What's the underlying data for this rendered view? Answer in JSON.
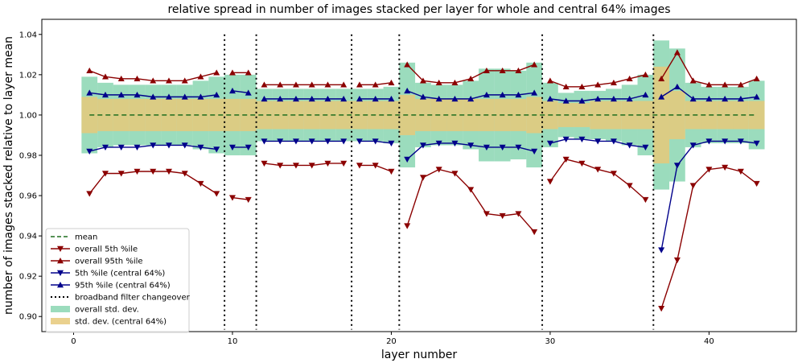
{
  "chart_data": {
    "type": "line",
    "title": "relative spread in number of images stacked per layer for whole and central 64% images",
    "xlabel": "layer number",
    "ylabel": "number of images stacked relative to layer mean",
    "xlim": [
      -2,
      45.5
    ],
    "ylim": [
      0.8925,
      1.0475
    ],
    "xticks": [
      0,
      10,
      20,
      30,
      40
    ],
    "yticks": [
      0.9,
      0.92,
      0.94,
      0.96,
      0.98,
      1.0,
      1.02,
      1.04
    ],
    "ytick_labels": [
      "0.90",
      "0.92",
      "0.94",
      "0.96",
      "0.98",
      "1.00",
      "1.02",
      "1.04"
    ],
    "legend_position": "lower-left",
    "mean_value": 1.0,
    "filter_changeovers": [
      9.5,
      11.5,
      17.5,
      20.5,
      29.5,
      36.5
    ],
    "layers": [
      1,
      2,
      3,
      4,
      5,
      6,
      7,
      8,
      9,
      10,
      11,
      12,
      13,
      14,
      15,
      16,
      17,
      18,
      19,
      20,
      21,
      22,
      23,
      24,
      25,
      26,
      27,
      28,
      29,
      30,
      31,
      32,
      33,
      34,
      35,
      36,
      37,
      38,
      39,
      40,
      41,
      42,
      43
    ],
    "series": [
      {
        "name": "mean",
        "kind": "dashed",
        "color": "#1f6e1f"
      },
      {
        "name": "overall 5th %ile",
        "kind": "line",
        "marker": "tri-down",
        "color": "#8b0000",
        "values": [
          0.961,
          0.971,
          0.971,
          0.972,
          0.972,
          0.972,
          0.971,
          0.966,
          0.961,
          0.959,
          0.958,
          0.976,
          0.975,
          0.975,
          0.975,
          0.976,
          0.976,
          0.975,
          0.975,
          0.972,
          0.945,
          0.969,
          0.973,
          0.971,
          0.963,
          0.951,
          0.95,
          0.951,
          0.942,
          0.967,
          0.978,
          0.976,
          0.973,
          0.971,
          0.965,
          0.958,
          0.904,
          0.928,
          0.965,
          0.973,
          0.974,
          0.972,
          0.966
        ]
      },
      {
        "name": "overall 95th %ile",
        "kind": "line",
        "marker": "tri-up",
        "color": "#8b0000",
        "values": [
          1.022,
          1.019,
          1.018,
          1.018,
          1.017,
          1.017,
          1.017,
          1.019,
          1.021,
          1.021,
          1.021,
          1.015,
          1.015,
          1.015,
          1.015,
          1.015,
          1.015,
          1.015,
          1.015,
          1.016,
          1.025,
          1.017,
          1.016,
          1.016,
          1.018,
          1.022,
          1.022,
          1.022,
          1.025,
          1.017,
          1.014,
          1.014,
          1.015,
          1.016,
          1.018,
          1.02,
          1.018,
          1.031,
          1.017,
          1.015,
          1.015,
          1.015,
          1.018
        ]
      },
      {
        "name": "5th %ile (central 64%)",
        "kind": "line",
        "marker": "tri-down",
        "color": "#00008b",
        "values": [
          0.982,
          0.984,
          0.984,
          0.984,
          0.985,
          0.985,
          0.985,
          0.984,
          0.983,
          0.984,
          0.984,
          0.987,
          0.987,
          0.987,
          0.987,
          0.987,
          0.987,
          0.987,
          0.987,
          0.986,
          0.978,
          0.985,
          0.986,
          0.986,
          0.985,
          0.984,
          0.984,
          0.984,
          0.982,
          0.986,
          0.988,
          0.988,
          0.987,
          0.987,
          0.985,
          0.984,
          0.933,
          0.975,
          0.985,
          0.987,
          0.987,
          0.987,
          0.986
        ]
      },
      {
        "name": "95th %ile (central 64%)",
        "kind": "line",
        "marker": "tri-up",
        "color": "#00008b",
        "values": [
          1.011,
          1.01,
          1.01,
          1.01,
          1.009,
          1.009,
          1.009,
          1.009,
          1.01,
          1.012,
          1.011,
          1.008,
          1.008,
          1.008,
          1.008,
          1.008,
          1.008,
          1.008,
          1.008,
          1.008,
          1.012,
          1.009,
          1.008,
          1.008,
          1.008,
          1.01,
          1.01,
          1.01,
          1.011,
          1.008,
          1.007,
          1.007,
          1.008,
          1.008,
          1.008,
          1.01,
          1.009,
          1.014,
          1.008,
          1.008,
          1.008,
          1.008,
          1.009
        ]
      },
      {
        "name": "broadband filter changeover",
        "kind": "dotted-vline",
        "color": "#000000"
      },
      {
        "name": "overall std. dev.",
        "kind": "band",
        "color": "#66c999",
        "values": [
          0.019,
          0.016,
          0.015,
          0.015,
          0.015,
          0.015,
          0.015,
          0.017,
          0.019,
          0.02,
          0.02,
          0.013,
          0.013,
          0.013,
          0.013,
          0.013,
          0.013,
          0.013,
          0.013,
          0.014,
          0.026,
          0.016,
          0.015,
          0.015,
          0.017,
          0.023,
          0.023,
          0.022,
          0.026,
          0.016,
          0.011,
          0.012,
          0.012,
          0.013,
          0.015,
          0.02,
          0.037,
          0.033,
          0.016,
          0.014,
          0.014,
          0.014,
          0.017
        ]
      },
      {
        "name": "std. dev. (central 64%)",
        "kind": "band",
        "color": "#e6c97a",
        "values": [
          0.009,
          0.008,
          0.008,
          0.008,
          0.008,
          0.008,
          0.008,
          0.008,
          0.008,
          0.008,
          0.008,
          0.007,
          0.007,
          0.007,
          0.007,
          0.007,
          0.007,
          0.007,
          0.007,
          0.007,
          0.01,
          0.008,
          0.008,
          0.008,
          0.008,
          0.008,
          0.008,
          0.008,
          0.009,
          0.007,
          0.006,
          0.006,
          0.007,
          0.007,
          0.007,
          0.007,
          0.024,
          0.012,
          0.007,
          0.007,
          0.007,
          0.007,
          0.007
        ]
      }
    ]
  }
}
